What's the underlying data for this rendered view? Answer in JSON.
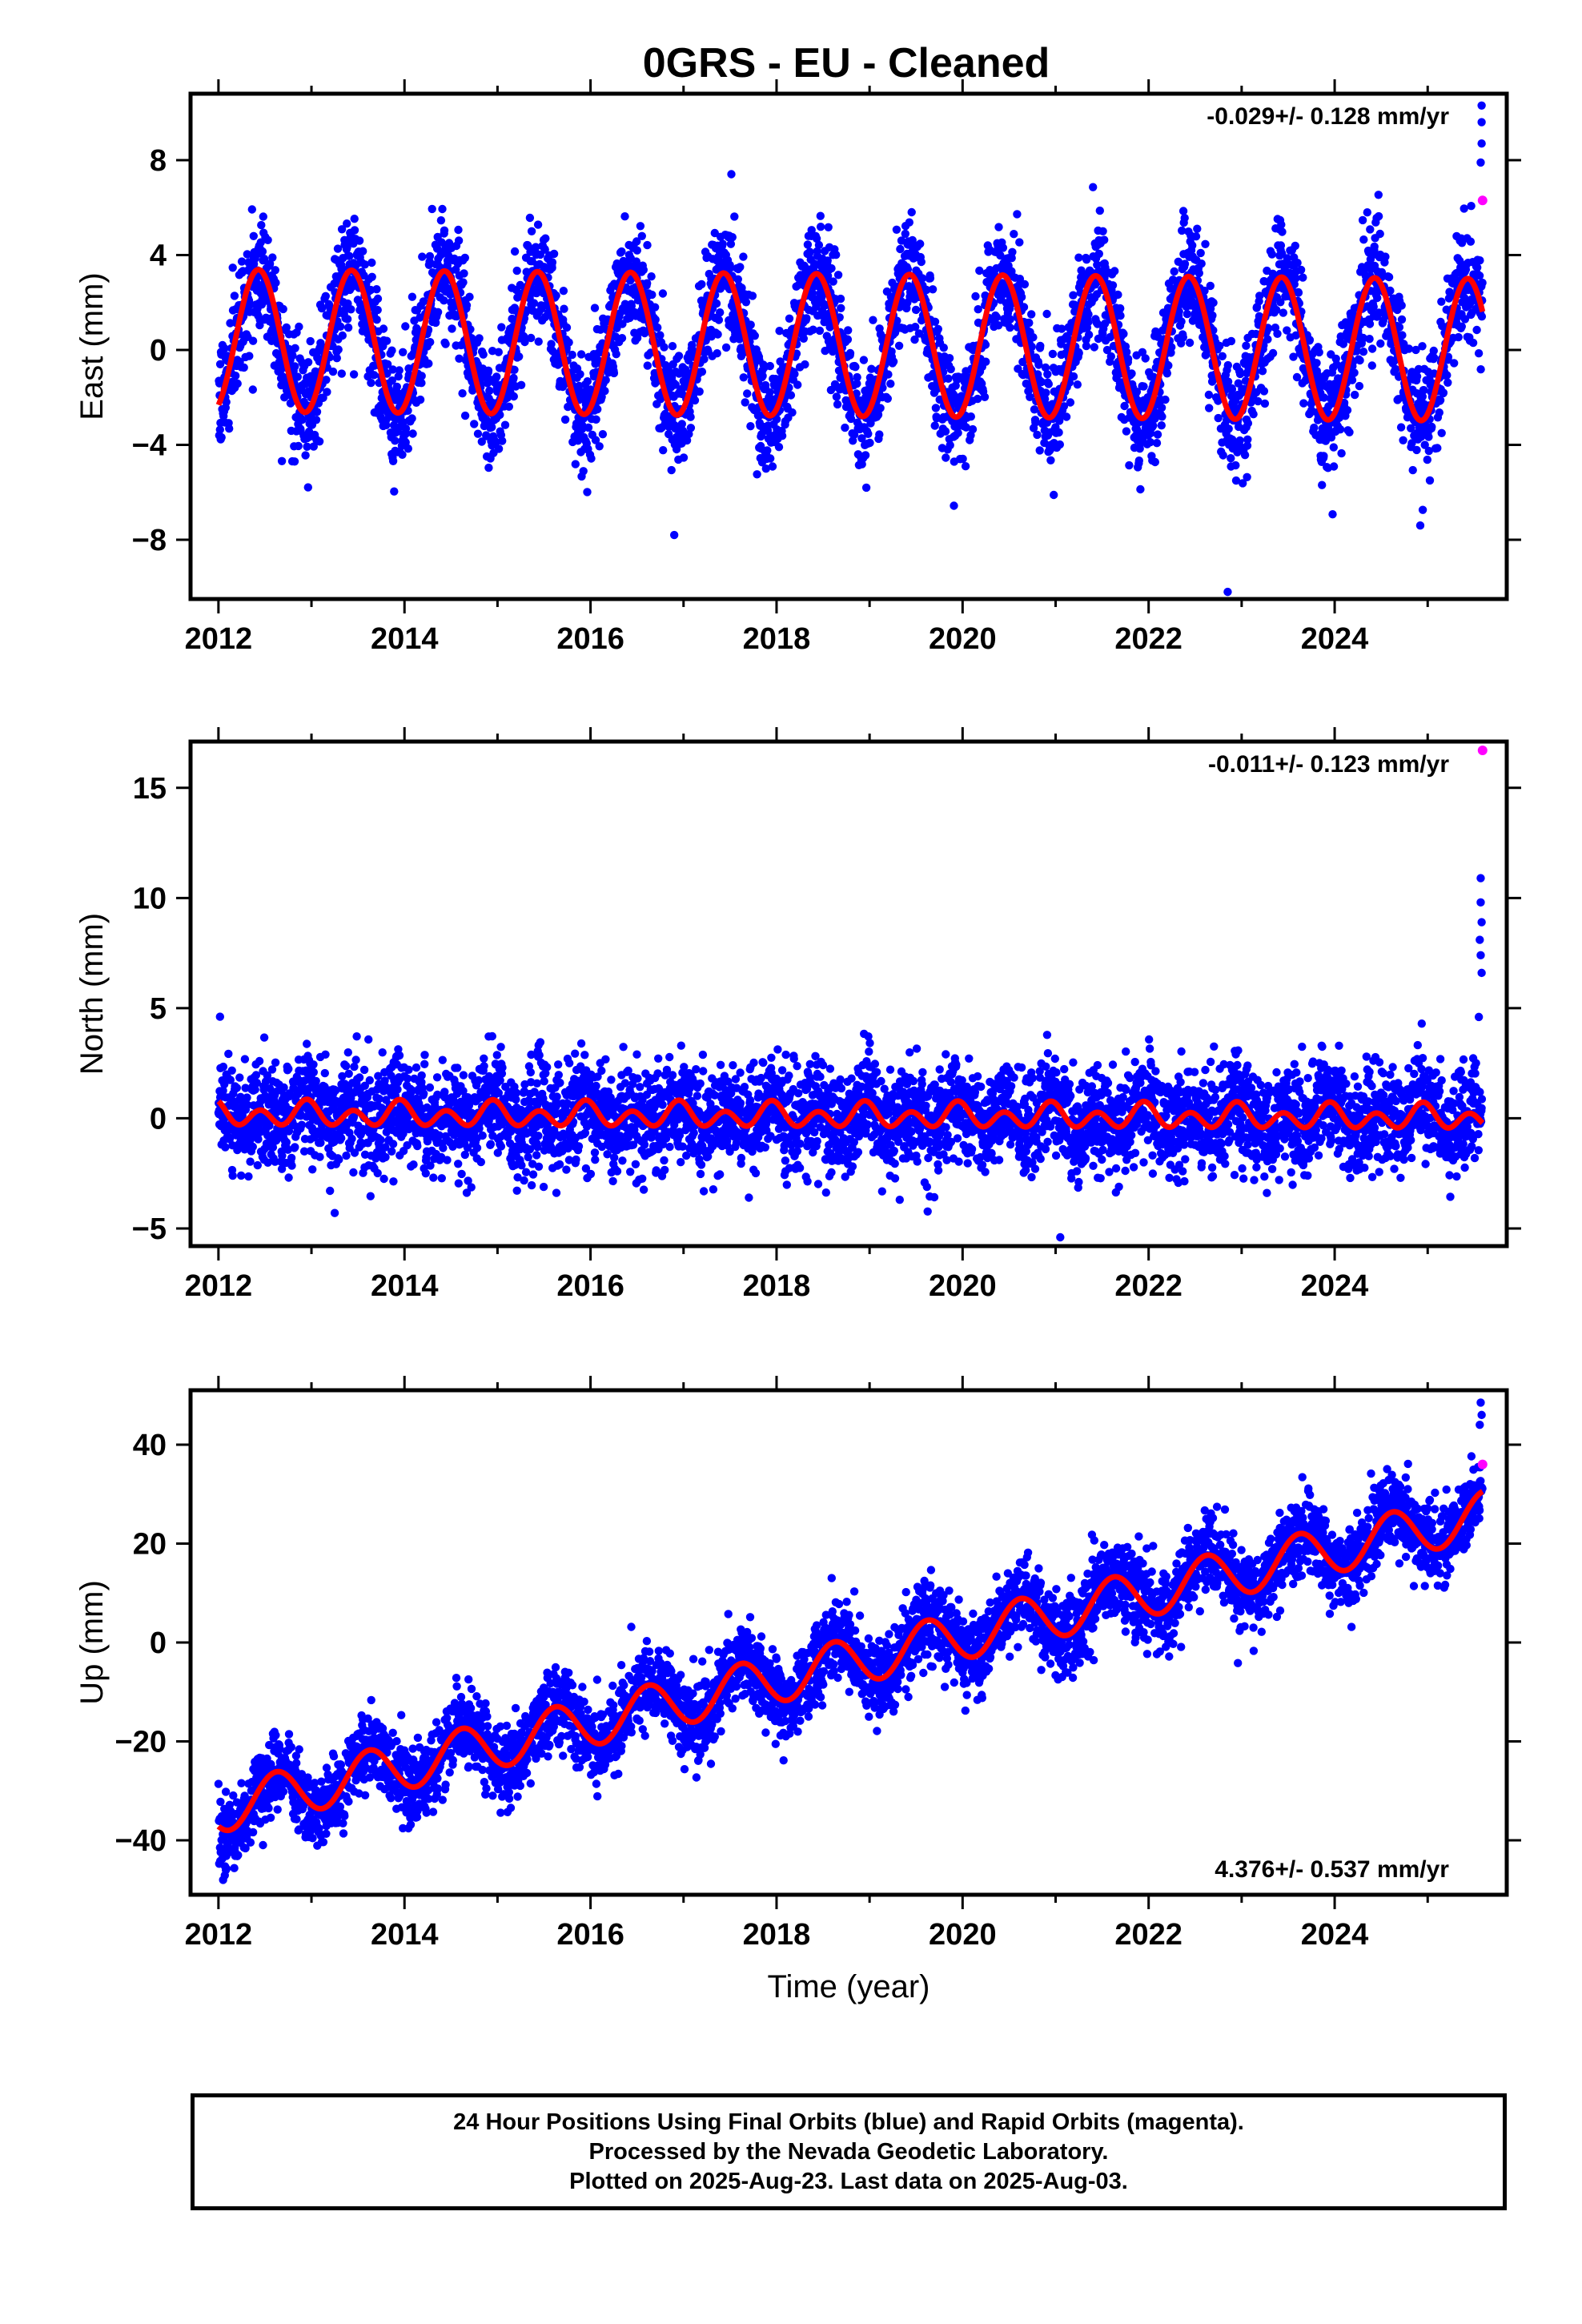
{
  "title": "0GRS  - EU - Cleaned",
  "colors": {
    "data": "#0000ff",
    "rapid": "#ff00ff",
    "model": "#ff0000",
    "frame": "#000000"
  },
  "chart_data": [
    {
      "type": "scatter",
      "component": "east",
      "ylabel": "East (mm)",
      "xlabel": "",
      "xlim": [
        2011.7,
        2025.85
      ],
      "ylim": [
        -10.5,
        10.8
      ],
      "xticks": [
        2012,
        2014,
        2016,
        2018,
        2020,
        2022,
        2024
      ],
      "yticks": [
        -8,
        -4,
        0,
        4,
        8
      ],
      "ytick_labels": [
        "−8",
        "−4",
        "0",
        "4",
        "8"
      ],
      "rate_text": "-0.029+/- 0.128 mm/yr",
      "rate_position": "top-right",
      "model": {
        "name": "",
        "offset": 0.2,
        "rate": -0.029,
        "t0": 2018.8,
        "annual_amp": 3.0,
        "annual_phase_peak": 0.43,
        "semiannual_amp": 0.0,
        "semiannual_phase_peak": 0.0,
        "start": 2012.0,
        "end": 2025.59
      },
      "scatter": {
        "start": 2012.0,
        "end": 2025.59,
        "noise_sd": 1.2
      },
      "rapid_points": [
        {
          "x": 2025.59,
          "y": 6.3
        }
      ],
      "outliers": [
        {
          "x": 2022.85,
          "y": -10.2
        },
        {
          "x": 2016.9,
          "y": -7.8
        },
        {
          "x": 2025.58,
          "y": 10.3
        },
        {
          "x": 2025.58,
          "y": 9.6
        },
        {
          "x": 2025.58,
          "y": 8.7
        },
        {
          "x": 2025.57,
          "y": 7.9
        },
        {
          "x": 2024.92,
          "y": -7.4
        }
      ]
    },
    {
      "type": "scatter",
      "component": "north",
      "ylabel": "North (mm)",
      "xlabel": "",
      "xlim": [
        2011.7,
        2025.85
      ],
      "ylim": [
        -5.8,
        17.1
      ],
      "xticks": [
        2012,
        2014,
        2016,
        2018,
        2020,
        2022,
        2024
      ],
      "yticks": [
        -5,
        0,
        5,
        10,
        15
      ],
      "ytick_labels": [
        "−5",
        "0",
        "5",
        "10",
        "15"
      ],
      "rate_text": "-0.011+/- 0.123 mm/yr",
      "rate_position": "top-right",
      "model": {
        "name": "",
        "offset": 0.1,
        "rate": -0.011,
        "t0": 2018.8,
        "annual_amp": 0.25,
        "annual_phase_peak": 0.95,
        "semiannual_amp": 0.45,
        "semiannual_phase_peak": 0.45,
        "start": 2012.0,
        "end": 2025.59
      },
      "scatter": {
        "start": 2012.0,
        "end": 2025.59,
        "noise_sd": 1.15
      },
      "rapid_points": [
        {
          "x": 2025.59,
          "y": 16.7
        }
      ],
      "outliers": [
        {
          "x": 2025.57,
          "y": 10.9
        },
        {
          "x": 2025.57,
          "y": 9.8
        },
        {
          "x": 2025.58,
          "y": 8.9
        },
        {
          "x": 2025.56,
          "y": 8.1
        },
        {
          "x": 2025.57,
          "y": 7.4
        },
        {
          "x": 2025.58,
          "y": 6.6
        },
        {
          "x": 2025.55,
          "y": 4.6
        },
        {
          "x": 2021.05,
          "y": -5.4
        },
        {
          "x": 2013.25,
          "y": -4.3
        }
      ]
    },
    {
      "type": "scatter",
      "component": "up",
      "ylabel": "Up (mm)",
      "xlabel": "Time (year)",
      "xlim": [
        2011.7,
        2025.85
      ],
      "ylim": [
        -51,
        51
      ],
      "xticks": [
        2012,
        2014,
        2016,
        2018,
        2020,
        2022,
        2024
      ],
      "yticks": [
        -40,
        -20,
        0,
        20,
        40
      ],
      "ytick_labels": [
        "−40",
        "−20",
        "0",
        "20",
        "40"
      ],
      "rate_text": "4.376+/- 0.537 mm/yr",
      "rate_position": "bottom-right",
      "model": {
        "name": "",
        "offset": -3.9,
        "rate": 4.376,
        "t0": 2018.8,
        "annual_amp": 4.8,
        "annual_phase_peak": 0.62,
        "semiannual_amp": 0.0,
        "semiannual_phase_peak": 0.0,
        "start": 2012.0,
        "end": 2025.59
      },
      "scatter": {
        "start": 2012.0,
        "end": 2025.59,
        "noise_sd": 4.0
      },
      "rapid_points": [
        {
          "x": 2025.59,
          "y": 36.0
        }
      ],
      "outliers": [
        {
          "x": 2012.05,
          "y": -48.0
        },
        {
          "x": 2012.08,
          "y": -46.0
        },
        {
          "x": 2025.57,
          "y": 48.5
        },
        {
          "x": 2025.58,
          "y": 46.0
        },
        {
          "x": 2025.56,
          "y": 44.0
        }
      ]
    }
  ],
  "caption": {
    "line1": "24 Hour Positions Using Final Orbits (blue) and Rapid Orbits (magenta).",
    "line2": "Processed by the Nevada Geodetic Laboratory.",
    "line3": "Plotted on 2025-Aug-23. Last data on 2025-Aug-03."
  }
}
